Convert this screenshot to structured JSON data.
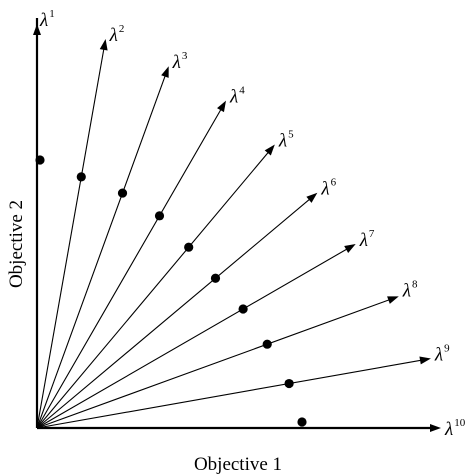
{
  "diagram": {
    "x_axis_label": "Objective 1",
    "y_axis_label": "Objective 2",
    "weight_symbol": "λ",
    "weight_vectors": [
      {
        "index": "1",
        "angle_deg": 90.0
      },
      {
        "index": "2",
        "angle_deg": 80.0
      },
      {
        "index": "3",
        "angle_deg": 70.0
      },
      {
        "index": "4",
        "angle_deg": 60.0
      },
      {
        "index": "5",
        "angle_deg": 50.0
      },
      {
        "index": "6",
        "angle_deg": 40.0
      },
      {
        "index": "7",
        "angle_deg": 30.0
      },
      {
        "index": "8",
        "angle_deg": 20.0
      },
      {
        "index": "9",
        "angle_deg": 10.0
      },
      {
        "index": "10",
        "angle_deg": 0.0
      }
    ]
  },
  "colors": {
    "lines": "#000000",
    "points": "#000000",
    "background": "#ffffff"
  }
}
